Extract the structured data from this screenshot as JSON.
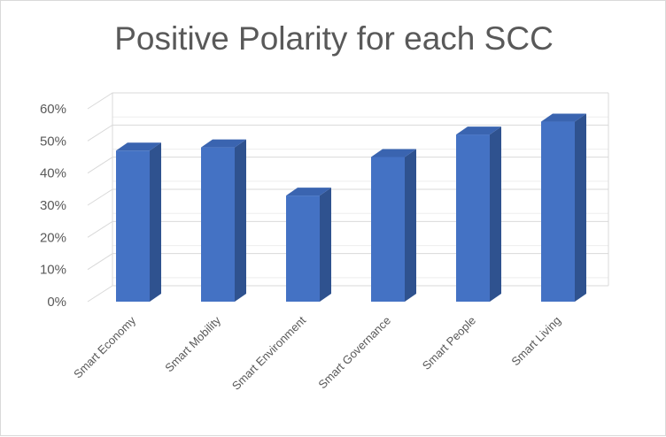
{
  "chart_data": {
    "type": "bar",
    "title": "Positive Polarity for each SCC",
    "categories": [
      "Smart Economy",
      "Smart Mobility",
      "Smart Environment",
      "Smart Governance",
      "Smart People",
      "Smart Living"
    ],
    "series": [
      {
        "values": [
          47,
          48,
          33,
          45,
          52,
          56
        ]
      }
    ],
    "ylim": [
      0,
      60
    ],
    "yticks": [
      "0%",
      "10%",
      "20%",
      "30%",
      "40%",
      "50%",
      "60%"
    ],
    "y_unit": "percent",
    "grid": true,
    "legend": "none",
    "colors": {
      "bar_front": "#4472c4",
      "bar_side": "#2f528f",
      "bar_top": "#3a64b0",
      "grid": "#d9d9d9"
    }
  }
}
